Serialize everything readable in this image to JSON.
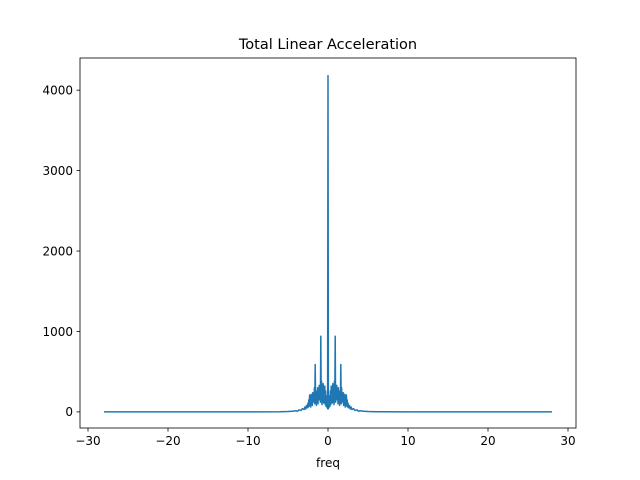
{
  "chart_data": {
    "type": "line",
    "title": "Total Linear Acceleration",
    "xlabel": "freq",
    "ylabel": "",
    "xlim": [
      -31,
      31
    ],
    "ylim": [
      -200,
      4400
    ],
    "xticks": [
      -30,
      -20,
      -10,
      0,
      10,
      20,
      30
    ],
    "xtick_labels": [
      "−30",
      "−20",
      "−10",
      "0",
      "10",
      "20",
      "30"
    ],
    "yticks": [
      0,
      1000,
      2000,
      3000,
      4000
    ],
    "ytick_labels": [
      "0",
      "1000",
      "2000",
      "3000",
      "4000"
    ],
    "grid": false,
    "legend": "none",
    "series": [
      {
        "color": "#1f77b4",
        "x": [
          -28,
          -10,
          -6,
          -5,
          -4.5,
          -4,
          -3.8,
          -3.6,
          -3.4,
          -3.2,
          -3,
          -2.9,
          -2.8,
          -2.7,
          -2.6,
          -2.5,
          -2.45,
          -2.4,
          -2.35,
          -2.3,
          -2.25,
          -2.2,
          -2.15,
          -2.1,
          -2.05,
          -2,
          -1.95,
          -1.9,
          -1.85,
          -1.8,
          -1.75,
          -1.7,
          -1.65,
          -1.6,
          -1.55,
          -1.5,
          -1.45,
          -1.4,
          -1.35,
          -1.3,
          -1.25,
          -1.2,
          -1.15,
          -1.1,
          -1.05,
          -1,
          -0.95,
          -0.9,
          -0.85,
          -0.8,
          -0.75,
          -0.7,
          -0.65,
          -0.6,
          -0.55,
          -0.5,
          -0.45,
          -0.4,
          -0.35,
          -0.3,
          -0.25,
          -0.2,
          -0.15,
          -0.1,
          -0.05,
          0,
          0.05,
          0.1,
          0.15,
          0.2,
          0.25,
          0.3,
          0.35,
          0.4,
          0.45,
          0.5,
          0.55,
          0.6,
          0.65,
          0.7,
          0.75,
          0.8,
          0.85,
          0.9,
          0.95,
          1,
          1.05,
          1.1,
          1.15,
          1.2,
          1.25,
          1.3,
          1.35,
          1.4,
          1.45,
          1.5,
          1.55,
          1.6,
          1.65,
          1.7,
          1.75,
          1.8,
          1.85,
          1.9,
          1.95,
          2,
          2.05,
          2.1,
          2.15,
          2.2,
          2.25,
          2.3,
          2.35,
          2.4,
          2.45,
          2.5,
          2.6,
          2.7,
          2.8,
          2.9,
          3,
          3.2,
          3.4,
          3.6,
          3.8,
          4,
          4.5,
          5,
          6,
          10,
          28
        ],
        "y": [
          0,
          0,
          2,
          5,
          8,
          15,
          10,
          25,
          18,
          40,
          30,
          60,
          35,
          80,
          50,
          110,
          60,
          150,
          70,
          210,
          90,
          180,
          60,
          220,
          100,
          160,
          80,
          240,
          120,
          200,
          150,
          300,
          100,
          590,
          120,
          260,
          80,
          200,
          140,
          300,
          100,
          250,
          180,
          330,
          150,
          270,
          120,
          940,
          140,
          380,
          90,
          280,
          150,
          350,
          110,
          300,
          130,
          320,
          90,
          260,
          70,
          200,
          60,
          180,
          40,
          4180,
          40,
          180,
          60,
          200,
          70,
          260,
          90,
          320,
          130,
          300,
          110,
          350,
          150,
          280,
          90,
          380,
          140,
          940,
          120,
          270,
          150,
          330,
          180,
          250,
          100,
          300,
          140,
          200,
          80,
          260,
          120,
          590,
          100,
          300,
          150,
          200,
          120,
          240,
          80,
          160,
          100,
          220,
          60,
          180,
          90,
          210,
          70,
          150,
          60,
          110,
          50,
          80,
          35,
          60,
          30,
          40,
          18,
          25,
          10,
          15,
          8,
          5,
          2,
          0,
          0
        ]
      }
    ]
  }
}
